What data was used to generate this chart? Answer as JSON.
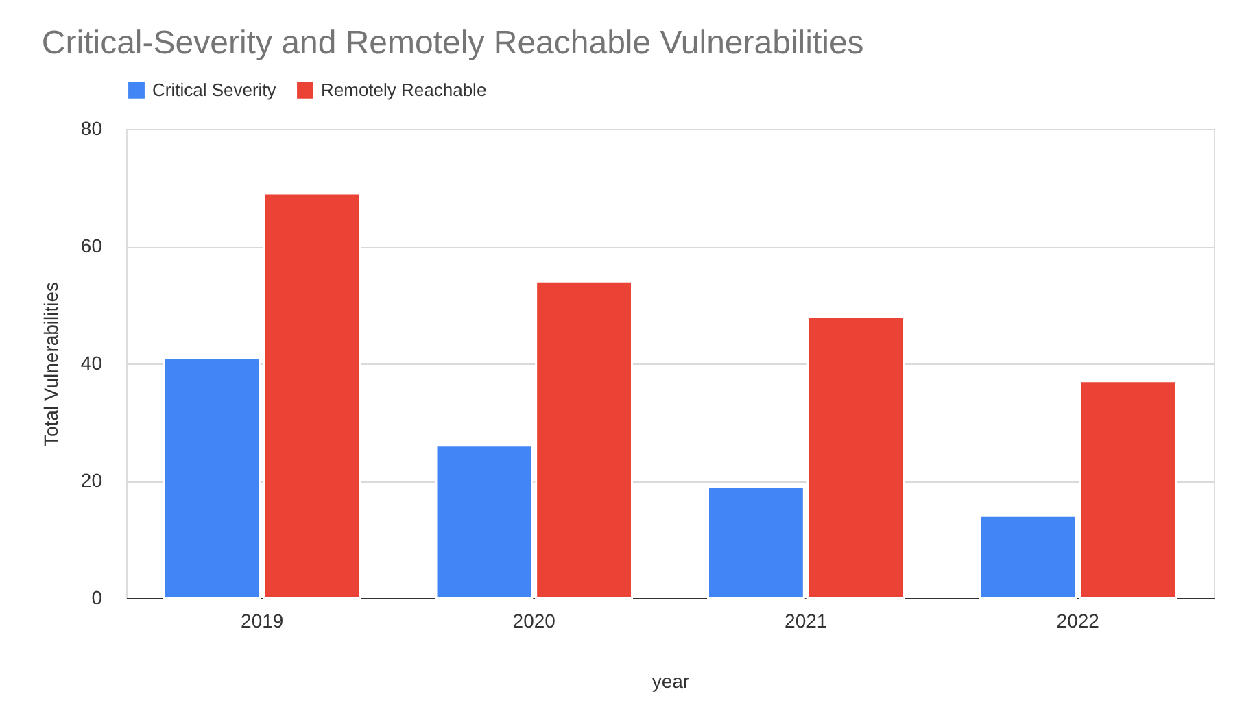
{
  "chart_data": {
    "type": "bar",
    "title": "Critical-Severity and Remotely Reachable Vulnerabilities",
    "xlabel": "year",
    "ylabel": "Total Vulnerabilities",
    "categories": [
      "2019",
      "2020",
      "2021",
      "2022"
    ],
    "series": [
      {
        "name": "Critical Severity",
        "color": "#4285f4",
        "values": [
          41,
          26,
          19,
          14
        ]
      },
      {
        "name": "Remotely Reachable",
        "color": "#ea4335",
        "values": [
          69,
          54,
          48,
          37
        ]
      }
    ],
    "ylim": [
      0,
      80
    ],
    "yticks": [
      0,
      20,
      40,
      60,
      80
    ],
    "grid": "y",
    "legend": "top"
  }
}
